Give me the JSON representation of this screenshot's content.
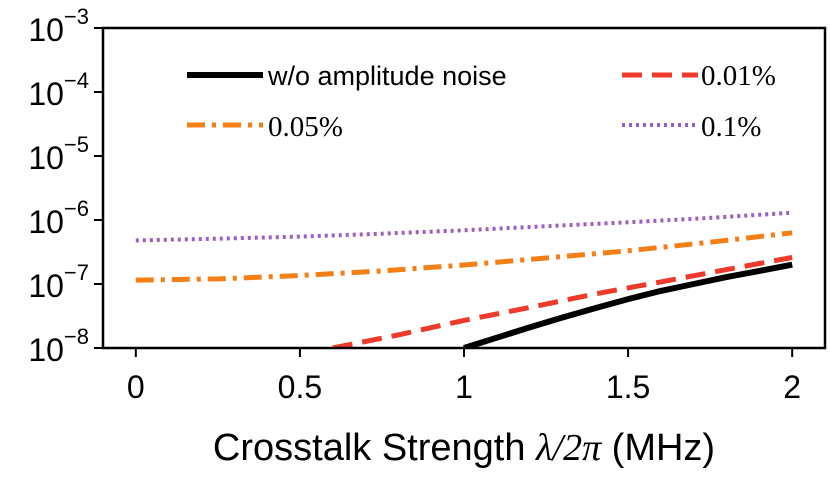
{
  "chart_data": {
    "type": "line",
    "title": "",
    "xlabel": "Crosstalk Strength λ/2π (MHz)",
    "xlabel_parts": {
      "prefix": "Crosstalk Strength ",
      "math": "λ/2π",
      "suffix": " (MHz)"
    },
    "ylabel": "",
    "xlim": [
      -0.1,
      2.1
    ],
    "ylim": [
      1e-08,
      0.001
    ],
    "yscale": "log",
    "grid": false,
    "x_ticks": [
      0,
      0.5,
      1,
      1.5,
      2
    ],
    "x_tick_labels": [
      "0",
      "0.5",
      "1",
      "1.5",
      "2"
    ],
    "y_ticks": [
      1e-08,
      1e-07,
      1e-06,
      1e-05,
      0.0001,
      0.001
    ],
    "y_tick_labels": [
      {
        "base": "10",
        "exp": "−8"
      },
      {
        "base": "10",
        "exp": "−7"
      },
      {
        "base": "10",
        "exp": "−6"
      },
      {
        "base": "10",
        "exp": "−5"
      },
      {
        "base": "10",
        "exp": "−4"
      },
      {
        "base": "10",
        "exp": "−3"
      }
    ],
    "legend_placement": "upper, two columns",
    "series": [
      {
        "name": "w/o amplitude noise",
        "color": "#000000",
        "style": "solid",
        "x": [
          1.0,
          1.1,
          1.2,
          1.3,
          1.4,
          1.5,
          1.6,
          1.7,
          1.8,
          1.9,
          2.0
        ],
        "y": [
          1e-08,
          1.45e-08,
          2.1e-08,
          3e-08,
          4.2e-08,
          5.8e-08,
          7.8e-08,
          1e-07,
          1.28e-07,
          1.6e-07,
          2e-07
        ]
      },
      {
        "name": "0.01%",
        "color": "#ee3a2a",
        "style": "dashed",
        "x": [
          0.6,
          0.8,
          1.0,
          1.2,
          1.4,
          1.6,
          1.8,
          2.0
        ],
        "y": [
          1e-08,
          1.6e-08,
          2.7e-08,
          4.3e-08,
          7e-08,
          1.08e-07,
          1.68e-07,
          2.6e-07
        ]
      },
      {
        "name": "0.05%",
        "color": "#f57f17",
        "style": "dashdot",
        "x": [
          0,
          0.25,
          0.5,
          0.75,
          1.0,
          1.25,
          1.5,
          1.75,
          2.0
        ],
        "y": [
          1.15e-07,
          1.2e-07,
          1.36e-07,
          1.6e-07,
          1.98e-07,
          2.55e-07,
          3.3e-07,
          4.5e-07,
          6.3e-07
        ]
      },
      {
        "name": "0.1%",
        "color": "#9b5fc0",
        "style": "dotted",
        "x": [
          0,
          0.25,
          0.5,
          0.75,
          1.0,
          1.25,
          1.5,
          1.75,
          2.0
        ],
        "y": [
          4.8e-07,
          5.1e-07,
          5.5e-07,
          6.1e-07,
          6.9e-07,
          8e-07,
          9.2e-07,
          1.08e-06,
          1.3e-06
        ]
      }
    ]
  }
}
